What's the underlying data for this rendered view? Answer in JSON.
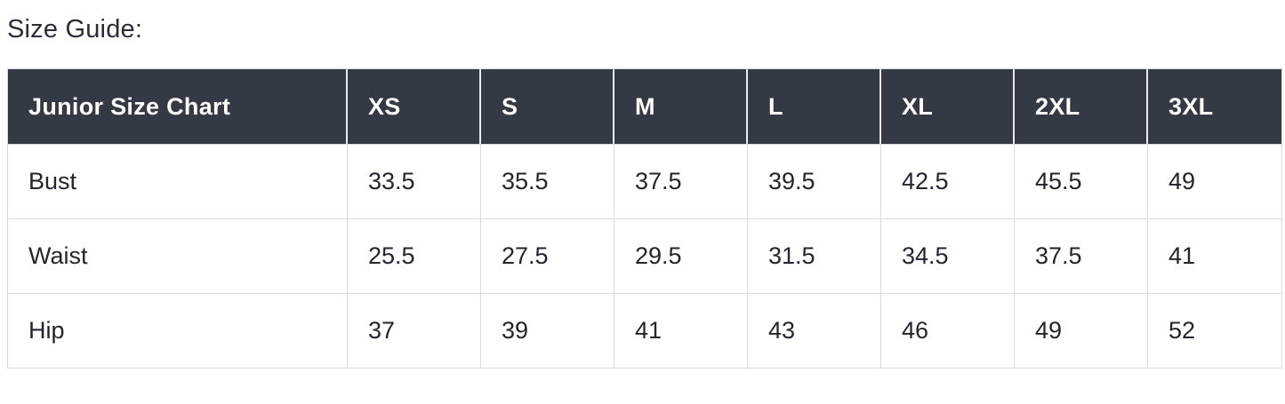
{
  "page": {
    "title": "Size Guide:"
  },
  "colors": {
    "header_bg": "#343a44",
    "header_text": "#fdfdfe",
    "body_text": "#21262e",
    "border": "#d8dce2",
    "header_divider": "#e9ebee",
    "title_color": "#272e38",
    "page_bg": "#ffffff"
  },
  "size_chart": {
    "header": [
      "Junior Size Chart",
      "XS",
      "S",
      "M",
      "L",
      "XL",
      "2XL",
      "3XL"
    ],
    "rows": [
      {
        "cells": [
          "Bust",
          "33.5",
          "35.5",
          "37.5",
          "39.5",
          "42.5",
          "45.5",
          "49"
        ]
      },
      {
        "cells": [
          "Waist",
          "25.5",
          "27.5",
          "29.5",
          "31.5",
          "34.5",
          "37.5",
          "41"
        ]
      },
      {
        "cells": [
          "Hip",
          "37",
          "39",
          "41",
          "43",
          "46",
          "49",
          "52"
        ]
      }
    ]
  }
}
